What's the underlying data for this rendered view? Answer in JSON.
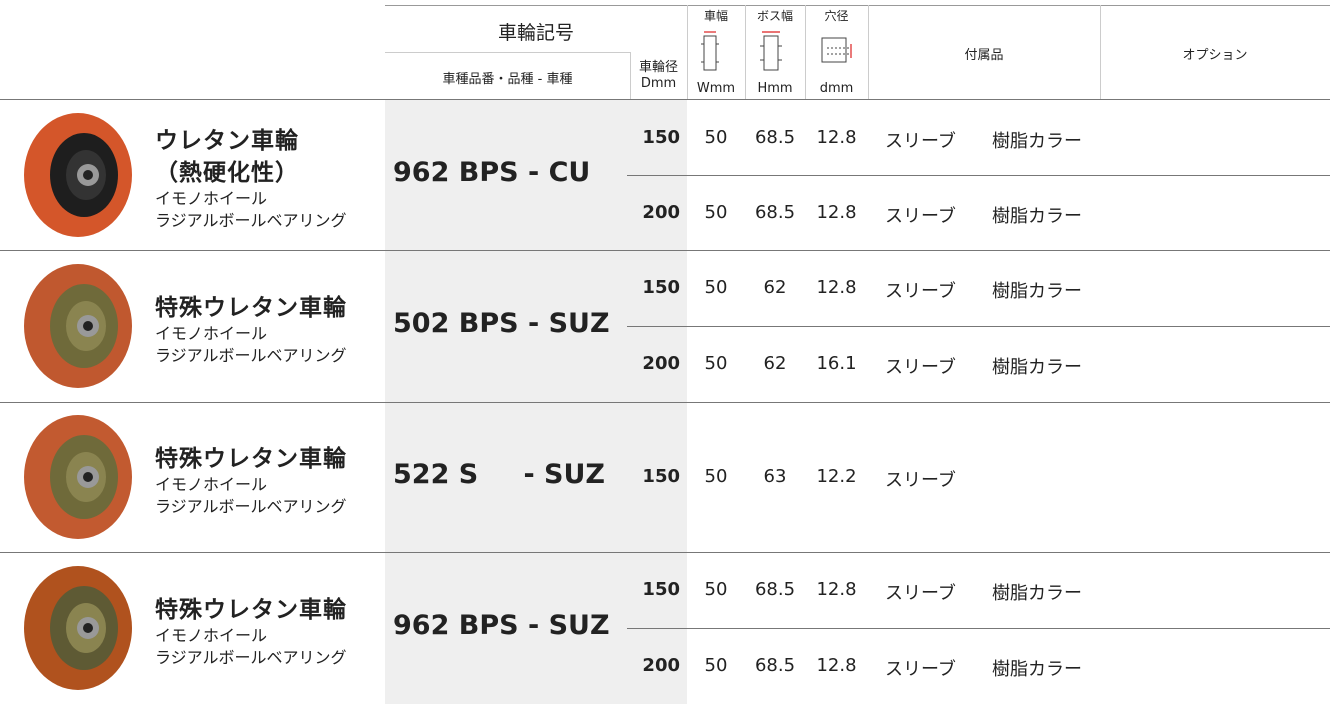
{
  "header": {
    "code": "車輪記号",
    "code_detail": "車種品番・品種 - 車種",
    "diameter": {
      "label": "車輪径",
      "unit": "Dmm"
    },
    "width": {
      "label": "車幅",
      "unit": "Wmm"
    },
    "boss": {
      "label": "ボス幅",
      "unit": "Hmm"
    },
    "bore": {
      "label": "穴径",
      "unit": "dmm"
    },
    "accessories": "付属品",
    "options": "オプション"
  },
  "rows": [
    {
      "name_lines": [
        "ウレタン車輪",
        "（熱硬化性）"
      ],
      "sub_lines": [
        "イモノホイール",
        "ラジアルボールベアリング"
      ],
      "code": [
        "962 BPS - CU"
      ],
      "variants": [
        {
          "diameter": "150",
          "width": "50",
          "boss": "68.5",
          "bore": "12.8",
          "accessories": [
            "スリーブ",
            "樹脂カラー"
          ]
        },
        {
          "diameter": "200",
          "width": "50",
          "boss": "68.5",
          "bore": "12.8",
          "accessories": [
            "スリーブ",
            "樹脂カラー"
          ]
        }
      ]
    },
    {
      "name_lines": [
        "特殊ウレタン車輪"
      ],
      "sub_lines": [
        "イモノホイール",
        "ラジアルボールベアリング"
      ],
      "code": [
        "502 BPS - SUZ"
      ],
      "variants": [
        {
          "diameter": "150",
          "width": "50",
          "boss": "62",
          "bore": "12.8",
          "accessories": [
            "スリーブ",
            "樹脂カラー"
          ]
        },
        {
          "diameter": "200",
          "width": "50",
          "boss": "62",
          "bore": "16.1",
          "accessories": [
            "スリーブ",
            "樹脂カラー"
          ]
        }
      ]
    },
    {
      "name_lines": [
        "特殊ウレタン車輪"
      ],
      "sub_lines": [
        "イモノホイール",
        "ラジアルボールベアリング"
      ],
      "code": [
        "522 S",
        "- SUZ"
      ],
      "variants": [
        {
          "diameter": "150",
          "width": "50",
          "boss": "63",
          "bore": "12.2",
          "accessories": [
            "スリーブ"
          ]
        }
      ]
    },
    {
      "name_lines": [
        "特殊ウレタン車輪"
      ],
      "sub_lines": [
        "イモノホイール",
        "ラジアルボールベアリング"
      ],
      "code": [
        "962 BPS - SUZ"
      ],
      "variants": [
        {
          "diameter": "150",
          "width": "50",
          "boss": "68.5",
          "bore": "12.8",
          "accessories": [
            "スリーブ",
            "樹脂カラー"
          ]
        },
        {
          "diameter": "200",
          "width": "50",
          "boss": "68.5",
          "bore": "12.8",
          "accessories": [
            "スリーブ",
            "樹脂カラー"
          ]
        }
      ]
    }
  ]
}
